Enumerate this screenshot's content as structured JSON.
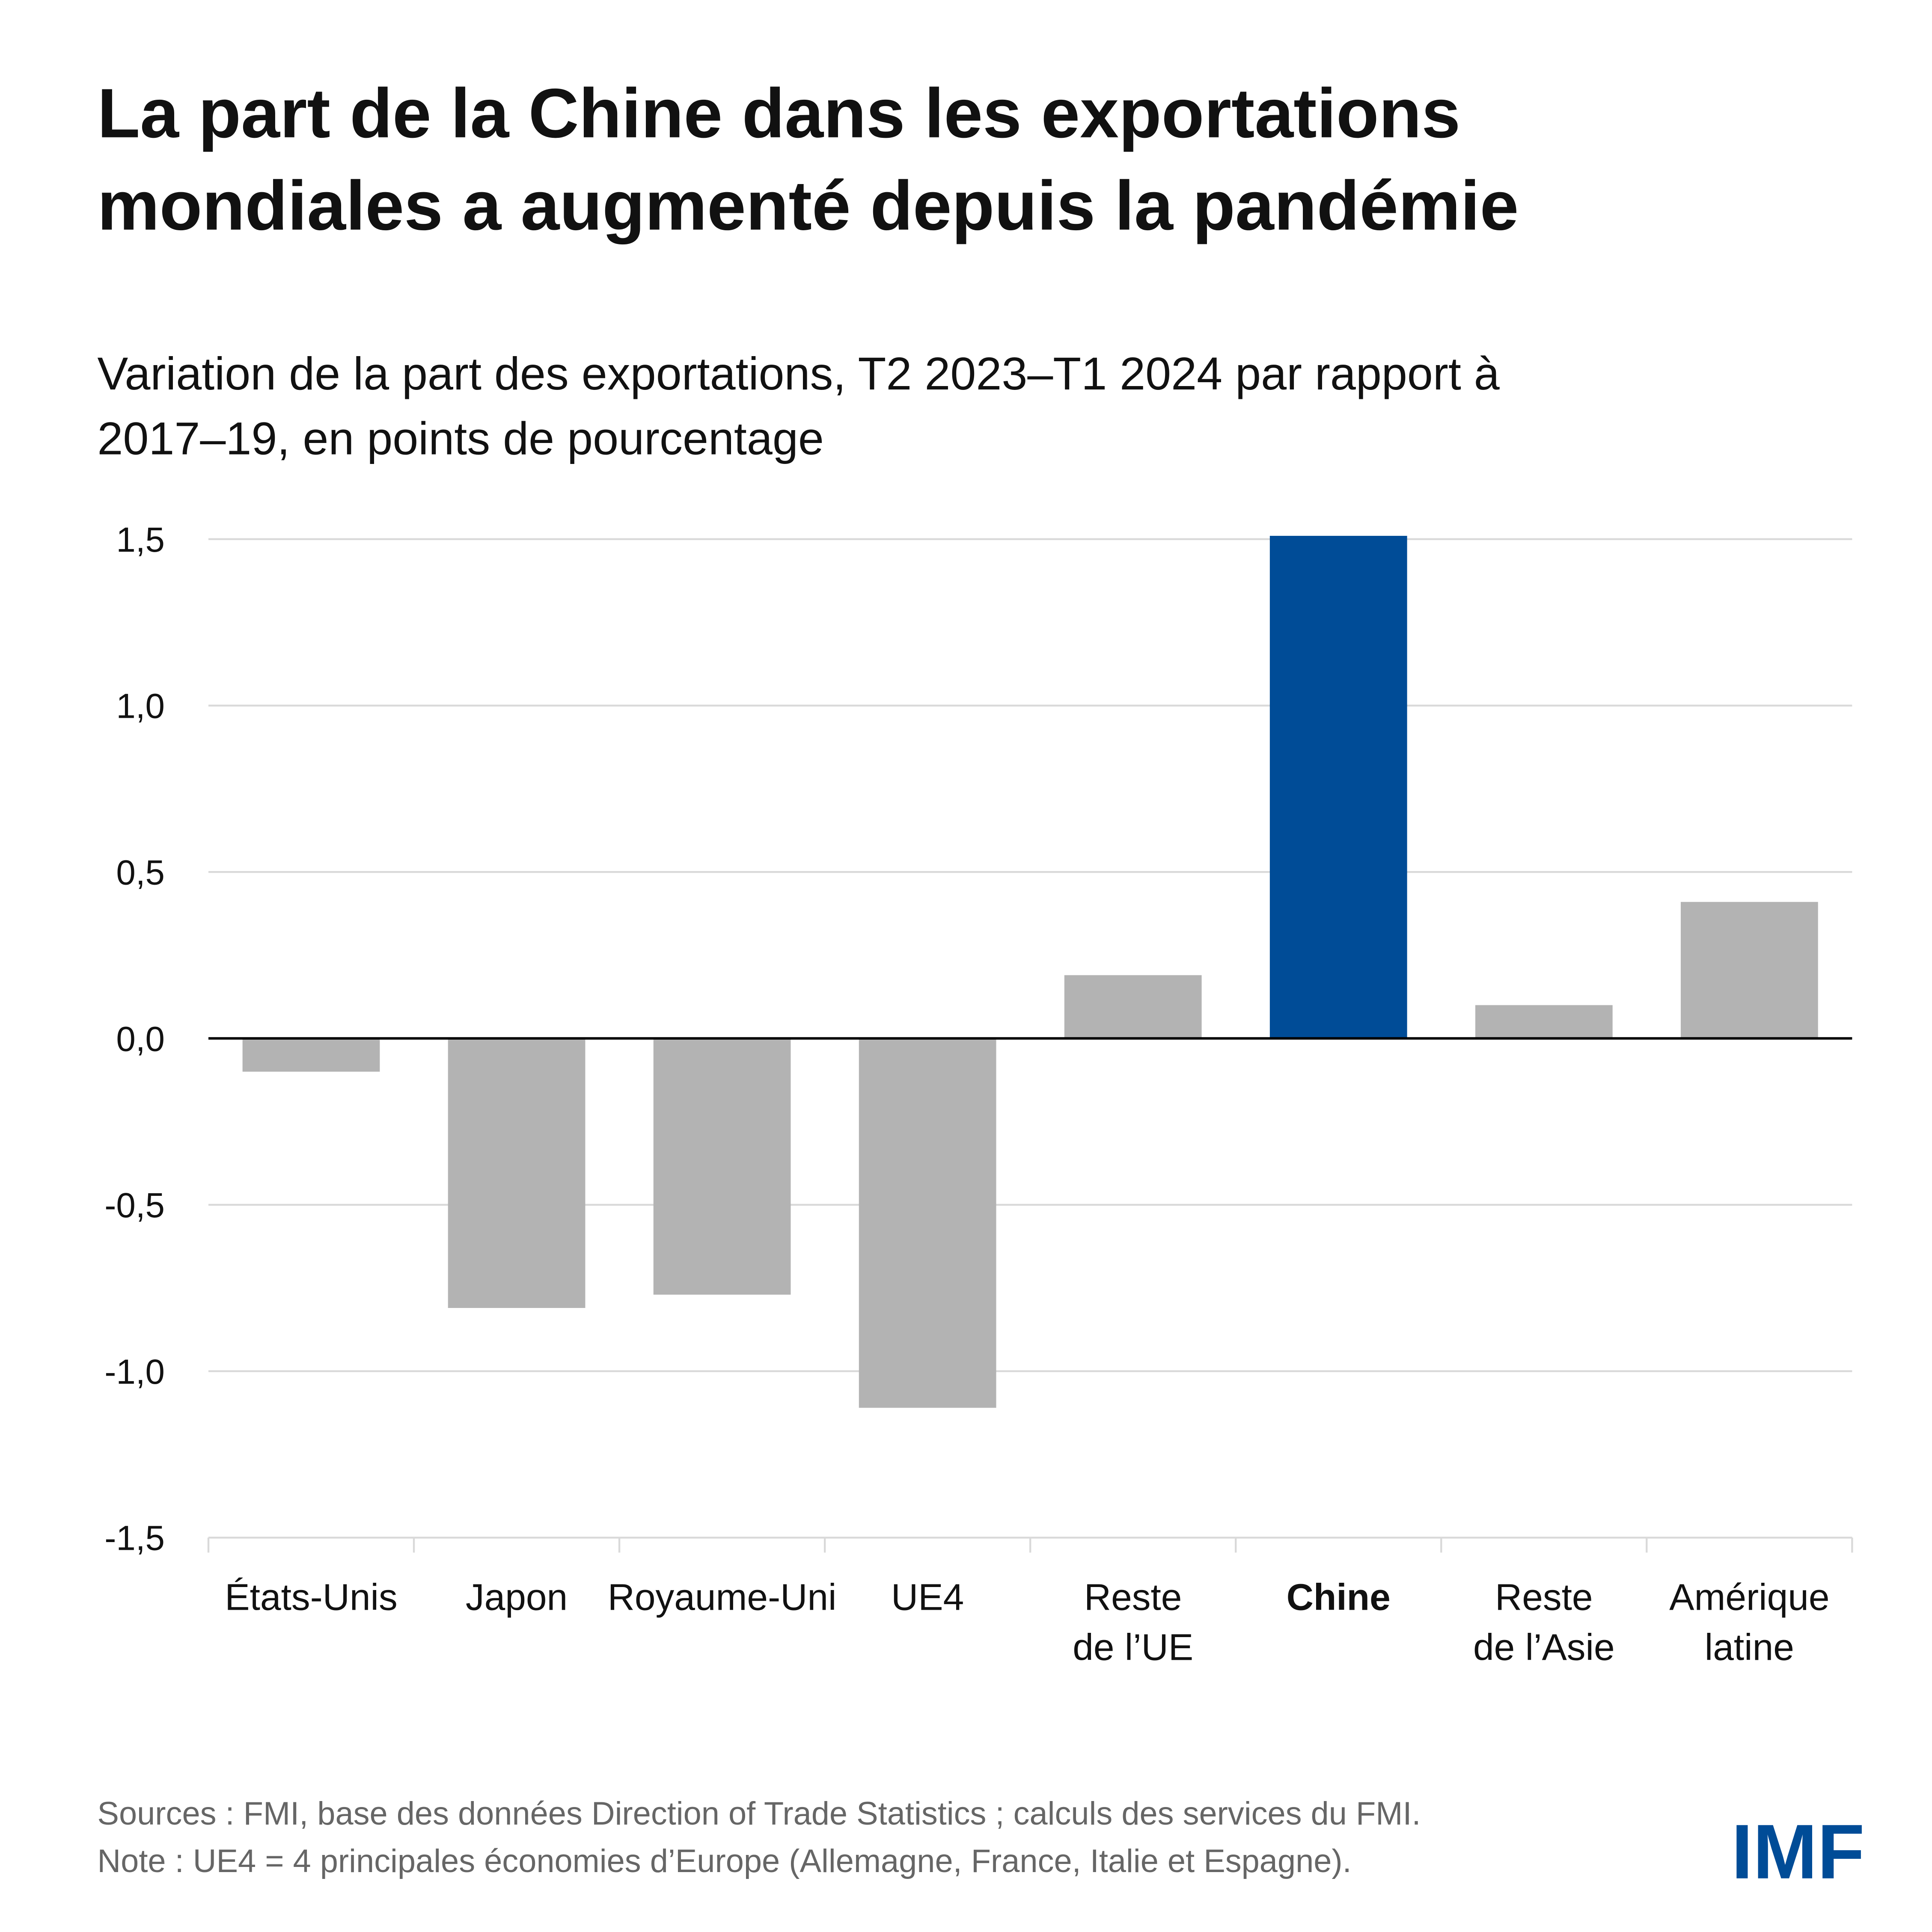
{
  "chart_data": {
    "type": "bar",
    "title": "La part de la Chine dans les exportations\nmondiales a augmenté depuis la pandémie",
    "subtitle": "Variation de la part des exportations, T2 2023–T1 2024 par rapport à\n2017–19, en points de pourcentage",
    "categories": [
      "États-Unis",
      "Japon",
      "Royaume-Uni",
      "UE4",
      "Reste\nde l’UE",
      "Chine",
      "Reste\nde l’Asie",
      "Amérique\nlatine"
    ],
    "values": [
      -0.1,
      -0.81,
      -0.77,
      -1.11,
      0.19,
      1.51,
      0.1,
      0.41
    ],
    "colors": [
      "#b3b3b3",
      "#b3b3b3",
      "#b3b3b3",
      "#b3b3b3",
      "#b3b3b3",
      "#004c97",
      "#b3b3b3",
      "#b3b3b3"
    ],
    "ylim": [
      -1.5,
      1.5
    ],
    "yticks": [
      {
        "value": -1.5,
        "label": "-1,5"
      },
      {
        "value": -1,
        "label": "-1,0"
      },
      {
        "value": -0.5,
        "label": "-0,5"
      },
      {
        "value": 0,
        "label": "0,0"
      },
      {
        "value": 0.5,
        "label": "0,5"
      },
      {
        "value": 1,
        "label": "1,0"
      },
      {
        "value": 1.5,
        "label": "1,5"
      }
    ],
    "grid": true,
    "notes": "Sources : FMI, base des données Direction of Trade Statistics ; calculs des services du FMI.\nNote : UE4 = 4 principales économies d’Europe (Allemagne, France, Italie et Espagne).",
    "logo": "IMF"
  }
}
